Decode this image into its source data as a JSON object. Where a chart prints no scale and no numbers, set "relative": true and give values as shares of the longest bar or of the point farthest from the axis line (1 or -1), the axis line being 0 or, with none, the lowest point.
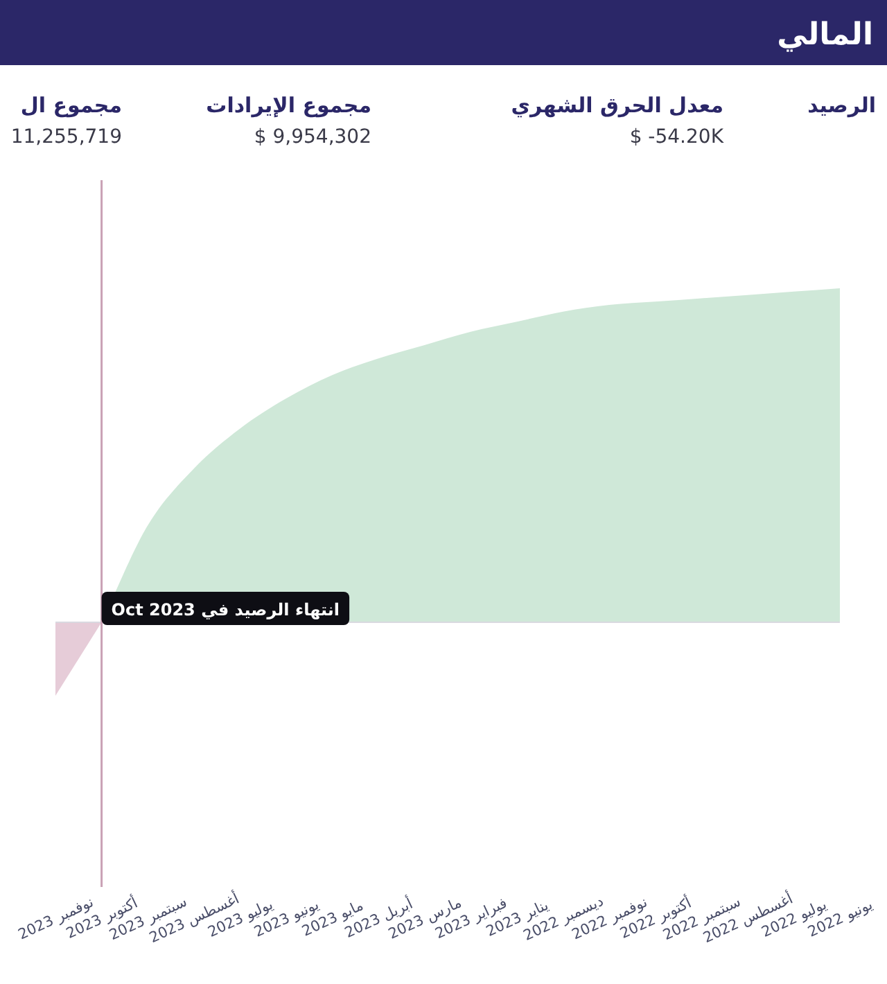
{
  "chart_data": {
    "type": "area",
    "title": "المالي",
    "annotations": [
      "الرصيد",
      "معدل الحرق الشهري",
      "$ -54.20K",
      "مجموع الإيرادات",
      "$ 9,954,302",
      "مجموع ال",
      "11,255,719"
    ],
    "categories": [
      "نوفمبر 2023",
      "أكتوبر 2023",
      "سبتمبر 2023",
      "أغسطس 2023",
      "يوليو 2023",
      "يونيو 2023",
      "مايو 2023",
      "أبريل 2023",
      "مارس 2023",
      "فبراير 2023",
      "يناير 2023",
      "ديسمبر 2022",
      "نوفمبر 2022",
      "أكتوبر 2022",
      "سبتمبر 2022",
      "أغسطس 2022",
      "يوليو 2022",
      "يونيو 2022"
    ],
    "relative": true,
    "series": [
      {
        "color": "#cfe8d8",
        "values": [
          null,
          0,
          0.29,
          0.46,
          0.58,
          0.67,
          0.74,
          0.79,
          0.83,
          0.87,
          0.9,
          0.93,
          0.95,
          0.96,
          0.97,
          0.98,
          0.99,
          1
        ]
      },
      {
        "color": "#e6ccd8",
        "values": [
          -0.22,
          0,
          null,
          null,
          null,
          null,
          null,
          null,
          null,
          null,
          null,
          null,
          null,
          null,
          null,
          null,
          null,
          null
        ]
      }
    ],
    "ref_lines": [
      {
        "axis": "x",
        "value": "أكتوبر 2023",
        "label": "انتهاء الرصيد في Oct 2023",
        "color": "#c9a1b5"
      }
    ]
  }
}
